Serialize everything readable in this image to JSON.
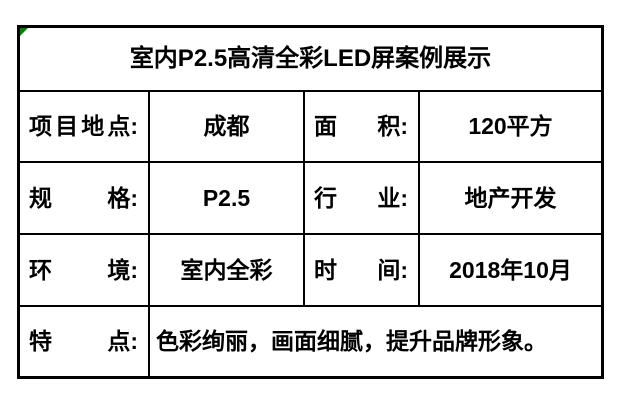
{
  "page": {
    "background_color": "#ffffff"
  },
  "table": {
    "title": "室内P2.5高清全彩LED屏案例展示",
    "colon": ":",
    "border_color": "#000000",
    "text_color": "#000000",
    "corner_marker_color": "#008000",
    "rows": [
      {
        "label1": "项目地点",
        "value1": "成都",
        "label2": "面积",
        "value2": "120平方"
      },
      {
        "label1": "规格",
        "value1": "P2.5",
        "label2": "行业",
        "value2": "地产开发"
      },
      {
        "label1": "环境",
        "value1": "室内全彩",
        "label2": "时间",
        "value2": "2018年10月"
      }
    ],
    "feature_row": {
      "label": "特点",
      "value": "色彩绚丽，画面细腻，提升品牌形象。"
    }
  }
}
